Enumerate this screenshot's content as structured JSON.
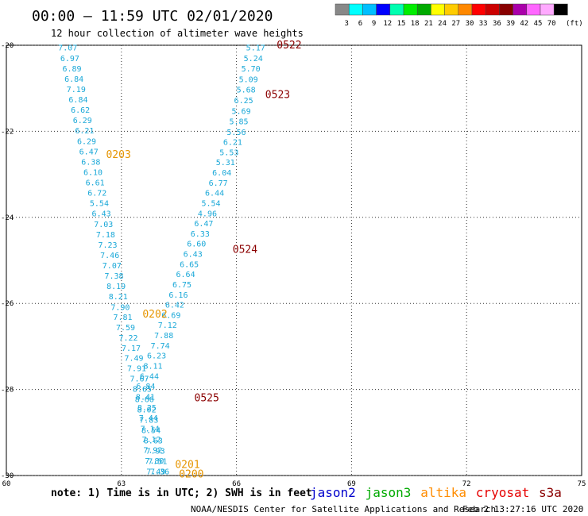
{
  "title": "00:00 – 11:59 UTC 02/01/2020",
  "subtitle": "12 hour collection of altimeter wave heights",
  "scale": {
    "colors": [
      "#888888",
      "#00ffff",
      "#00bfff",
      "#0000ff",
      "#00ffb0",
      "#00ee00",
      "#00aa00",
      "#ffff00",
      "#ffcc00",
      "#ff8800",
      "#ff0000",
      "#cc0000",
      "#880000",
      "#aa00aa",
      "#ff66ff",
      "#ffaaff",
      "#000000"
    ],
    "labels": [
      "3",
      "6",
      "9",
      "12",
      "15",
      "18",
      "21",
      "24",
      "27",
      "30",
      "33",
      "36",
      "39",
      "42",
      "45",
      "70"
    ],
    "unit": "(ft)"
  },
  "axes": {
    "lat_ticks": [
      "-20",
      "-22",
      "-24",
      "-26",
      "-28",
      "-30"
    ],
    "lon_ticks": [
      "60",
      "63",
      "66",
      "69",
      "72",
      "75"
    ]
  },
  "tracks": [
    {
      "name": "track-west",
      "color": "#1aa8d8",
      "values": [
        "7.07",
        "6.97",
        "6.89",
        "6.84",
        "7.19",
        "6.84",
        "6.62",
        "6.29",
        "6.21",
        "6.29",
        "6.47",
        "6.38",
        "6.10",
        "6.61",
        "6.72",
        "5.54",
        "6.43",
        "7.03",
        "7.18",
        "7.23",
        "7.46",
        "7.07",
        "7.38",
        "8.19",
        "8.21",
        "7.90",
        "7.81",
        "7.59",
        "7.22",
        "7.17",
        "7.49",
        "7.91",
        "7.67",
        "8.65",
        "8.66",
        "8.02",
        "7.83",
        "8.54",
        "8.63",
        "7.93",
        "7.51",
        "7.36"
      ]
    },
    {
      "name": "track-east",
      "color": "#1aa8d8",
      "values": [
        "5.17",
        "5.24",
        "5.70",
        "5.09",
        "5.68",
        "6.25",
        "5.69",
        "5.85",
        "5.56",
        "6.21",
        "5.53",
        "5.31",
        "6.04",
        "6.77",
        "6.44",
        "5.54",
        "4.96",
        "6.47",
        "6.33",
        "6.60",
        "6.43",
        "6.65",
        "6.64",
        "6.75",
        "6.16",
        "6.42",
        "6.69",
        "7.12",
        "7.88",
        "7.74",
        "6.23",
        "8.11",
        "6.44",
        "6.84",
        "8.41",
        "8.25",
        "7.44",
        "7.14",
        "7.12",
        "7.92",
        "7.80",
        "7.49"
      ]
    }
  ],
  "time_labels": [
    {
      "text": "0522",
      "color": "#8b0000",
      "lon": 67.05,
      "lat": -20.0
    },
    {
      "text": "0523",
      "color": "#8b0000",
      "lon": 66.75,
      "lat": -21.15
    },
    {
      "text": "0524",
      "color": "#8b0000",
      "lon": 65.9,
      "lat": -24.75
    },
    {
      "text": "0525",
      "color": "#8b0000",
      "lon": 64.9,
      "lat": -28.2
    },
    {
      "text": "0203",
      "color": "#e69500",
      "lon": 62.6,
      "lat": -22.55
    },
    {
      "text": "0202",
      "color": "#e69500",
      "lon": 63.55,
      "lat": -26.25
    },
    {
      "text": "0201",
      "color": "#e69500",
      "lon": 64.4,
      "lat": -29.75
    },
    {
      "text": "0200",
      "color": "#e69500",
      "lon": 64.5,
      "lat": -29.97
    }
  ],
  "note": "note: 1) Time is in UTC; 2) SWH is in feet",
  "satellites": [
    {
      "name": "jason2",
      "color": "#0000cc"
    },
    {
      "name": "jason3",
      "color": "#00aa00"
    },
    {
      "name": "altika",
      "color": "#ff8c00"
    },
    {
      "name": "cryosat",
      "color": "#e60000"
    },
    {
      "name": "s3a",
      "color": "#8b0000"
    }
  ],
  "credit_left": "NOAA/NESDIS Center for Satellite Applications and Research",
  "credit_right": "Feb  2 13:27:16 UTC 2020"
}
